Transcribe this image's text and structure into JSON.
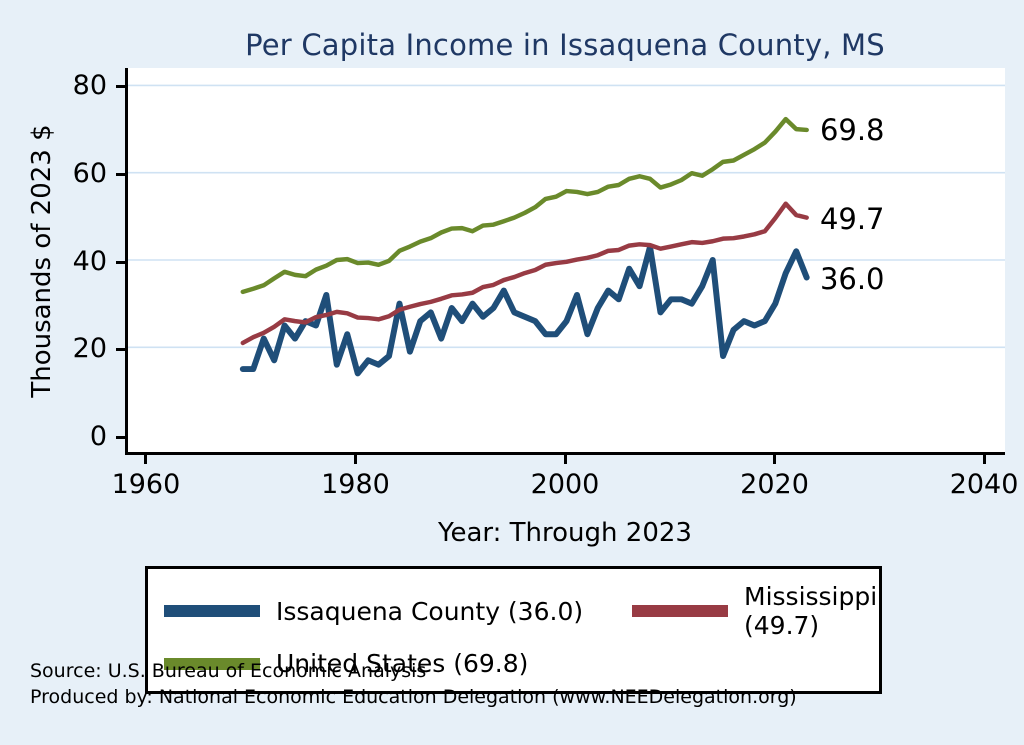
{
  "chart_data": {
    "type": "line",
    "title": "Per Capita Income in Issaquena County, MS",
    "xlabel": "Year: Through 2023",
    "ylabel": "Thousands of 2023 $",
    "xlim": [
      1960,
      2040
    ],
    "ylim": [
      0,
      80
    ],
    "xticks": [
      1960,
      1980,
      2000,
      2020,
      2040
    ],
    "yticks": [
      0,
      20,
      40,
      60,
      80
    ],
    "grid": true,
    "grid_color": "#cfe2f3",
    "legend_position": "bottom",
    "x": [
      1969,
      1970,
      1971,
      1972,
      1973,
      1974,
      1975,
      1976,
      1977,
      1978,
      1979,
      1980,
      1981,
      1982,
      1983,
      1984,
      1985,
      1986,
      1987,
      1988,
      1989,
      1990,
      1991,
      1992,
      1993,
      1994,
      1995,
      1996,
      1997,
      1998,
      1999,
      2000,
      2001,
      2002,
      2003,
      2004,
      2005,
      2006,
      2007,
      2008,
      2009,
      2010,
      2011,
      2012,
      2013,
      2014,
      2015,
      2016,
      2017,
      2018,
      2019,
      2020,
      2021,
      2022,
      2023
    ],
    "series": [
      {
        "name": "Issaquena County",
        "legend_label": "Issaquena County (36.0)",
        "end_label": "36.0",
        "end_value": 36.0,
        "color": "#1f4e79",
        "width": 6,
        "values": [
          15,
          15,
          22,
          17,
          25,
          22,
          26,
          25,
          32,
          16,
          23,
          14,
          17,
          16,
          18,
          30,
          19,
          26,
          28,
          22,
          29,
          26,
          30,
          27,
          29,
          33,
          28,
          27,
          26,
          23,
          23,
          26,
          32,
          23,
          29,
          33,
          31,
          38,
          34,
          43,
          28,
          31,
          31,
          30,
          34,
          40,
          18,
          24,
          26,
          25,
          26,
          30,
          37,
          42,
          36
        ]
      },
      {
        "name": "Mississippi",
        "legend_label": "Mississippi (49.7)",
        "end_label": "49.7",
        "end_value": 49.7,
        "color": "#983b44",
        "width": 4.5,
        "values": [
          21.0,
          22.3,
          23.3,
          24.7,
          26.4,
          26.0,
          25.7,
          26.9,
          27.4,
          28.1,
          27.8,
          26.8,
          26.7,
          26.4,
          27.1,
          28.6,
          29.3,
          29.9,
          30.4,
          31.1,
          31.9,
          32.1,
          32.5,
          33.8,
          34.3,
          35.4,
          36.1,
          37.0,
          37.7,
          38.9,
          39.3,
          39.6,
          40.1,
          40.5,
          41.1,
          42.1,
          42.3,
          43.3,
          43.6,
          43.4,
          42.6,
          43.1,
          43.6,
          44.1,
          43.9,
          44.3,
          44.9,
          45.0,
          45.4,
          45.9,
          46.6,
          49.6,
          52.9,
          50.3,
          49.7
        ]
      },
      {
        "name": "United States",
        "legend_label": "United States (69.8)",
        "end_label": "69.8",
        "end_value": 69.8,
        "color": "#6a8a2b",
        "width": 4.5,
        "values": [
          32.7,
          33.4,
          34.2,
          35.8,
          37.3,
          36.6,
          36.3,
          37.8,
          38.7,
          40.0,
          40.2,
          39.3,
          39.4,
          38.9,
          39.8,
          42.1,
          43.1,
          44.2,
          45.0,
          46.3,
          47.2,
          47.3,
          46.6,
          47.9,
          48.1,
          48.9,
          49.7,
          50.8,
          52.1,
          54.0,
          54.5,
          55.8,
          55.6,
          55.1,
          55.6,
          56.8,
          57.2,
          58.6,
          59.2,
          58.6,
          56.6,
          57.3,
          58.3,
          59.9,
          59.3,
          60.8,
          62.5,
          62.8,
          64.1,
          65.4,
          66.9,
          69.4,
          72.3,
          70.0,
          69.8
        ]
      }
    ]
  },
  "footer": {
    "source": "Source: U.S. Bureau of Economic Analysis",
    "produced_by": "Produced by: National Economic Education Delegation (www.NEEDelegation.org)"
  }
}
